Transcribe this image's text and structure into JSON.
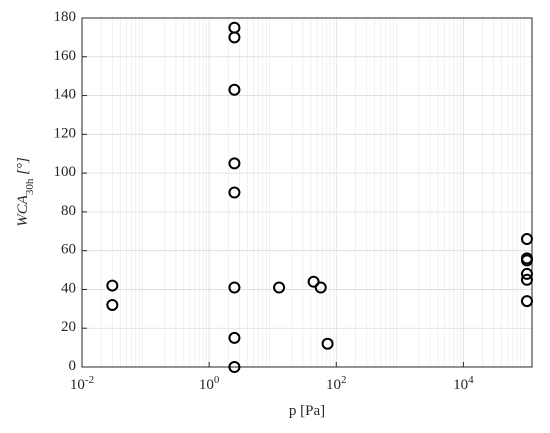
{
  "chart_data": {
    "type": "scatter",
    "xlabel": "p [Pa]",
    "ylabel": "WCA_{30h} [°]",
    "x": [
      0.03,
      0.03,
      2.5,
      2.5,
      2.5,
      2.5,
      2.5,
      2.5,
      2.5,
      2.5,
      12.6,
      44,
      57,
      73,
      100000,
      100000,
      100000,
      100000,
      100000,
      100000
    ],
    "values": [
      42,
      32,
      175,
      170,
      143,
      105,
      90,
      41,
      15,
      0,
      41,
      44,
      41,
      12,
      66,
      56,
      55,
      48,
      45,
      34
    ],
    "color": "#000000",
    "xlog": true,
    "xlim": [
      0.01,
      120000
    ],
    "xticks": [
      {
        "value": 0.01,
        "label": "10^{-2}"
      },
      {
        "value": 1,
        "label": "10^{0}"
      },
      {
        "value": 100,
        "label": "10^{2}"
      },
      {
        "value": 10000,
        "label": "10^{4}"
      }
    ],
    "ylim": [
      0,
      180
    ],
    "yticks": [
      0,
      20,
      40,
      60,
      80,
      100,
      120,
      140,
      160,
      180
    ],
    "grid": true
  }
}
